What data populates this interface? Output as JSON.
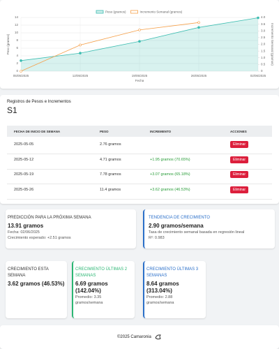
{
  "chart_data": {
    "type": "line",
    "x": [
      "05/05/2025",
      "12/05/2025",
      "19/05/2025",
      "26/05/2025",
      "02/06/2025"
    ],
    "xlabel": "Fecha",
    "ylabel": "Peso (gramos)",
    "y2label": "Incremento Semanal (gramos)",
    "ylim": [
      0,
      14
    ],
    "yticks": [
      0,
      2,
      4,
      6,
      8,
      10,
      12,
      14
    ],
    "y2lim": [
      0,
      4
    ],
    "y2ticks": [
      0,
      0.5,
      {
        "value": 1,
        "label": "1.0"
      },
      1.5,
      {
        "value": 2,
        "label": "2.0"
      },
      2.5,
      {
        "value": 3,
        "label": "3.0"
      },
      3.5,
      {
        "value": 4,
        "label": "4.0"
      }
    ],
    "grid": true,
    "legend": "top",
    "series": [
      {
        "name": "Peso (gramos)",
        "color": "#3dbdb1",
        "fill": true,
        "values": [
          2.76,
          4.71,
          7.78,
          11.4,
          13.91
        ]
      },
      {
        "name": "Incremento Semanal (gramos)",
        "color": "#f5a04a",
        "axis": "y2",
        "values": [
          0,
          1.95,
          3.07,
          3.62,
          null
        ]
      }
    ]
  },
  "table": {
    "title": "Registros de Pesos e Incrementos",
    "subtitle": "S1",
    "headers": [
      "FECHA DE INICIO DE SEMANA",
      "PESO",
      "INCREMENTO",
      "ACCIONES"
    ],
    "rows": [
      {
        "week": "2025-05-05",
        "weight": "2.76 gramos",
        "action": "Eliminar"
      },
      {
        "week": "2025-05-12",
        "weight": "4.71 gramos",
        "increment": "+1.95 gramos (70.65%)",
        "action": "Eliminar"
      },
      {
        "week": "2025-05-19",
        "weight": "7.78 gramos",
        "increment": "+3.07 gramos (65.18%)",
        "action": "Eliminar"
      },
      {
        "week": "2025-05-26",
        "weight": "11.4 gramos",
        "increment": "+3.62 gramos (46.53%)",
        "action": "Eliminar"
      }
    ]
  },
  "prediction": {
    "title": "PREDICCIÓN PARA LA PRÓXIMA SEMANA",
    "value": "13.91 gramos",
    "date": "Fecha: 02/06/2025",
    "expected": "Crecimiento esperado: +2.51 gramos"
  },
  "trend": {
    "title": "TENDENCIA DE CRECIMIENTO",
    "value": "2.90 gramos/semana",
    "description": "Tasa de crecimiento semanal basada en regresión lineal",
    "r2": "R²: 0.983"
  },
  "growth": [
    {
      "title": "CRECIMIENTO ESTA SEMANA",
      "value": "3.62 gramos (46.53%)"
    },
    {
      "title": "CRECIMIENTO ÚLTIMAS 2 SEMANAS",
      "value": "6.69 gramos (142.04%)",
      "average": "Promedio: 3.35 gramos/semana"
    },
    {
      "title": "CRECIMIENTO ÚLTIMAS 3 SEMANAS",
      "value": "8.64 gramos (313.04%)",
      "average": "Promedio: 2.88 gramos/semana"
    }
  ],
  "footer": "©2025 Camaronia"
}
